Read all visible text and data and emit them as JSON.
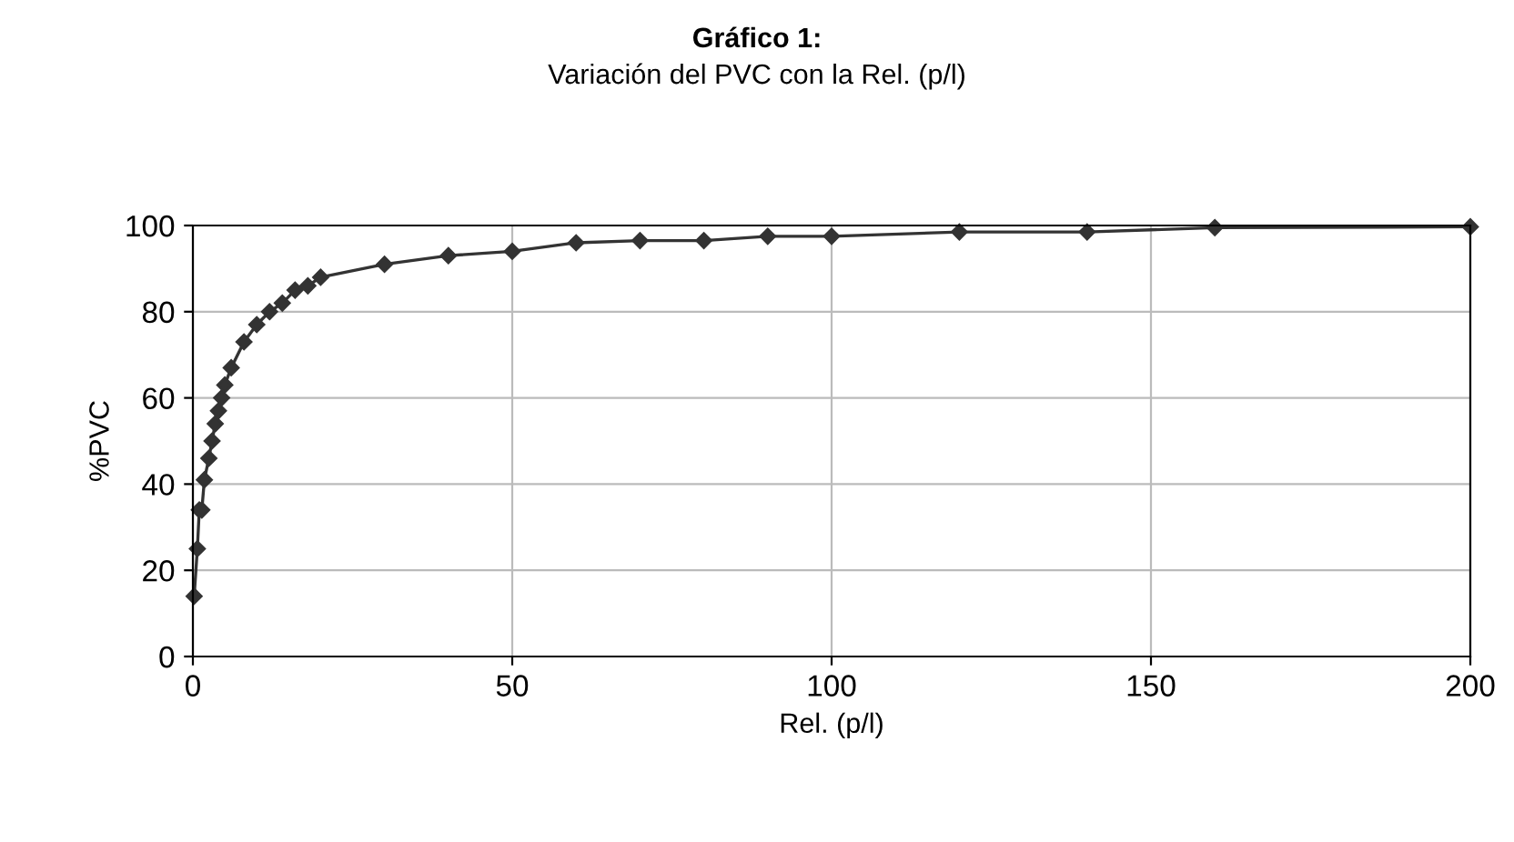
{
  "chart_data": {
    "type": "line",
    "title": "Gráfico 1:",
    "subtitle": "Variación del PVC con la Rel. (p/l)",
    "xlabel": "Rel. (p/l)",
    "ylabel": "%PVC",
    "series": [
      {
        "color": "#333333",
        "x": [
          0.2,
          0.7,
          1,
          1.4,
          1.8,
          2.5,
          3,
          3.5,
          4,
          4.5,
          5,
          6,
          8,
          10,
          12,
          14,
          16,
          18,
          20,
          30,
          40,
          50,
          60,
          70,
          80,
          90,
          100,
          120,
          140,
          160,
          200
        ],
        "values": [
          14,
          25,
          34,
          34,
          41,
          46,
          50,
          54,
          57,
          60,
          63,
          67,
          73,
          77,
          80,
          82,
          85,
          86,
          88,
          91,
          93,
          94,
          96,
          96.5,
          96.5,
          97.5,
          97.5,
          98.5,
          98.5,
          99.5,
          99.7
        ]
      }
    ],
    "xlim": [
      0,
      200
    ],
    "ylim": [
      0,
      100
    ],
    "xticks": [
      0,
      50,
      100,
      150,
      200
    ],
    "yticks": [
      0,
      20,
      40,
      60,
      80,
      100
    ],
    "grid": true,
    "marker": "diamond",
    "line_style": "solid"
  }
}
